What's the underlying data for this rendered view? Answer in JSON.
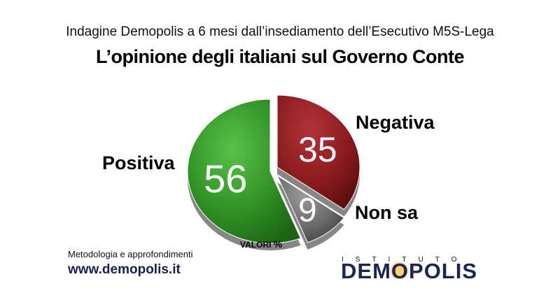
{
  "header": {
    "subtitle": "Indagine Demopolis a 6 mesi dall’insediamento dell’Esecutivo M5S-Lega",
    "title": "L’opinione degli italiani sul Governo Conte"
  },
  "chart_data": {
    "type": "pie",
    "title": "L’opinione degli italiani sul Governo Conte",
    "slices": [
      {
        "label": "Positiva",
        "value": 56,
        "color": "#2f8f24"
      },
      {
        "label": "Negativa",
        "value": 35,
        "color": "#8a1a1e"
      },
      {
        "label": "Non sa",
        "value": 9,
        "color": "#6a6a6a"
      }
    ],
    "units_label": "VALORI",
    "units_symbol": "%",
    "style": "3d-exploded"
  },
  "footer": {
    "methodology": "Metodologia e approfondimenti",
    "website": "www.demopolis.it",
    "brand_top": "ISTITUTO",
    "brand_main_start": "DEM",
    "brand_main_o": "O",
    "brand_main_end": "POLIS"
  }
}
